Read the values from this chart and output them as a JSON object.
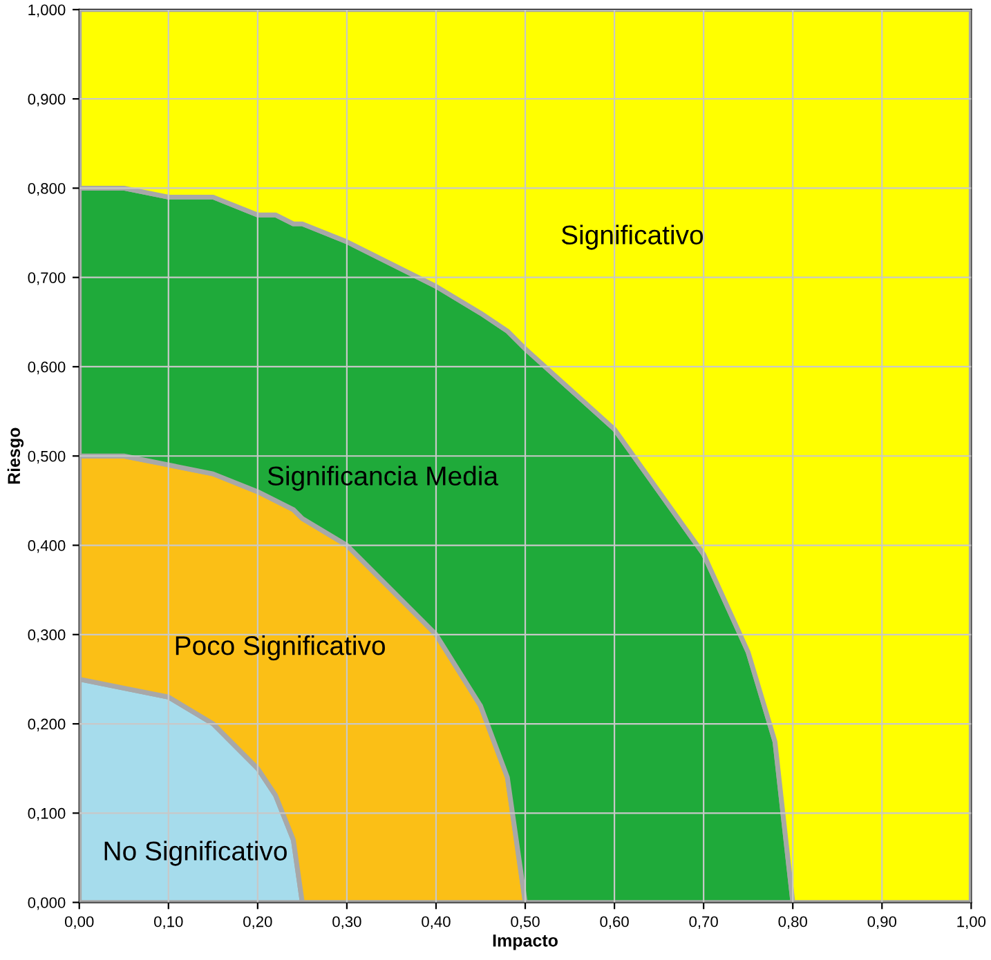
{
  "chart_data": {
    "type": "area",
    "stacked": true,
    "xlabel": "Impacto",
    "ylabel": "Riesgo",
    "x": [
      0,
      0.05,
      0.1,
      0.15,
      0.2,
      0.22,
      0.24,
      0.25,
      0.3,
      0.4,
      0.45,
      0.48,
      0.5,
      0.6,
      0.7,
      0.75,
      0.78,
      0.8,
      1.0
    ],
    "series": [
      {
        "color": "#a6dcec",
        "values": [
          0.25,
          0.24,
          0.23,
          0.2,
          0.15,
          0.12,
          0.07,
          0,
          0,
          0,
          0,
          0,
          0,
          0,
          0,
          0,
          0,
          0,
          0
        ]
      },
      {
        "color": "#fbbf16",
        "values": [
          0.25,
          0.26,
          0.26,
          0.28,
          0.31,
          0.33,
          0.37,
          0.43,
          0.4,
          0.3,
          0.22,
          0.14,
          0,
          0,
          0,
          0,
          0,
          0,
          0
        ]
      },
      {
        "color": "#1faa3a",
        "values": [
          0.3,
          0.3,
          0.3,
          0.31,
          0.31,
          0.32,
          0.32,
          0.33,
          0.34,
          0.39,
          0.44,
          0.5,
          0.62,
          0.53,
          0.39,
          0.28,
          0.18,
          0,
          0
        ]
      },
      {
        "color": "#ffff00",
        "values": [
          0.2,
          0.2,
          0.21,
          0.21,
          0.23,
          0.23,
          0.24,
          0.24,
          0.26,
          0.31,
          0.34,
          0.36,
          0.38,
          0.47,
          0.61,
          0.72,
          0.82,
          1,
          1
        ]
      }
    ],
    "annotations": [
      "Significativo",
      "Significancia Media",
      "Poco Significativo",
      "No Significativo"
    ],
    "xlim": [
      0,
      1
    ],
    "ylim": [
      0,
      1
    ],
    "xticks": [
      {
        "value": 0,
        "label": "0,00"
      },
      {
        "value": 0.1,
        "label": "0,10"
      },
      {
        "value": 0.2,
        "label": "0,20"
      },
      {
        "value": 0.3,
        "label": "0,30"
      },
      {
        "value": 0.4,
        "label": "0,40"
      },
      {
        "value": 0.5,
        "label": "0,50"
      },
      {
        "value": 0.6,
        "label": "0,60"
      },
      {
        "value": 0.7,
        "label": "0,70"
      },
      {
        "value": 0.8,
        "label": "0,80"
      },
      {
        "value": 0.9,
        "label": "0,90"
      },
      {
        "value": 1,
        "label": "1,00"
      }
    ],
    "yticks": [
      {
        "value": 0,
        "label": "0,000"
      },
      {
        "value": 0.1,
        "label": "0,100"
      },
      {
        "value": 0.2,
        "label": "0,200"
      },
      {
        "value": 0.3,
        "label": "0,300"
      },
      {
        "value": 0.4,
        "label": "0,400"
      },
      {
        "value": 0.5,
        "label": "0,500"
      },
      {
        "value": 0.6,
        "label": "0,600"
      },
      {
        "value": 0.7,
        "label": "0,700"
      },
      {
        "value": 0.8,
        "label": "0,800"
      },
      {
        "value": 0.9,
        "label": "0,900"
      },
      {
        "value": 1,
        "label": "1,000"
      }
    ],
    "grid": true
  }
}
